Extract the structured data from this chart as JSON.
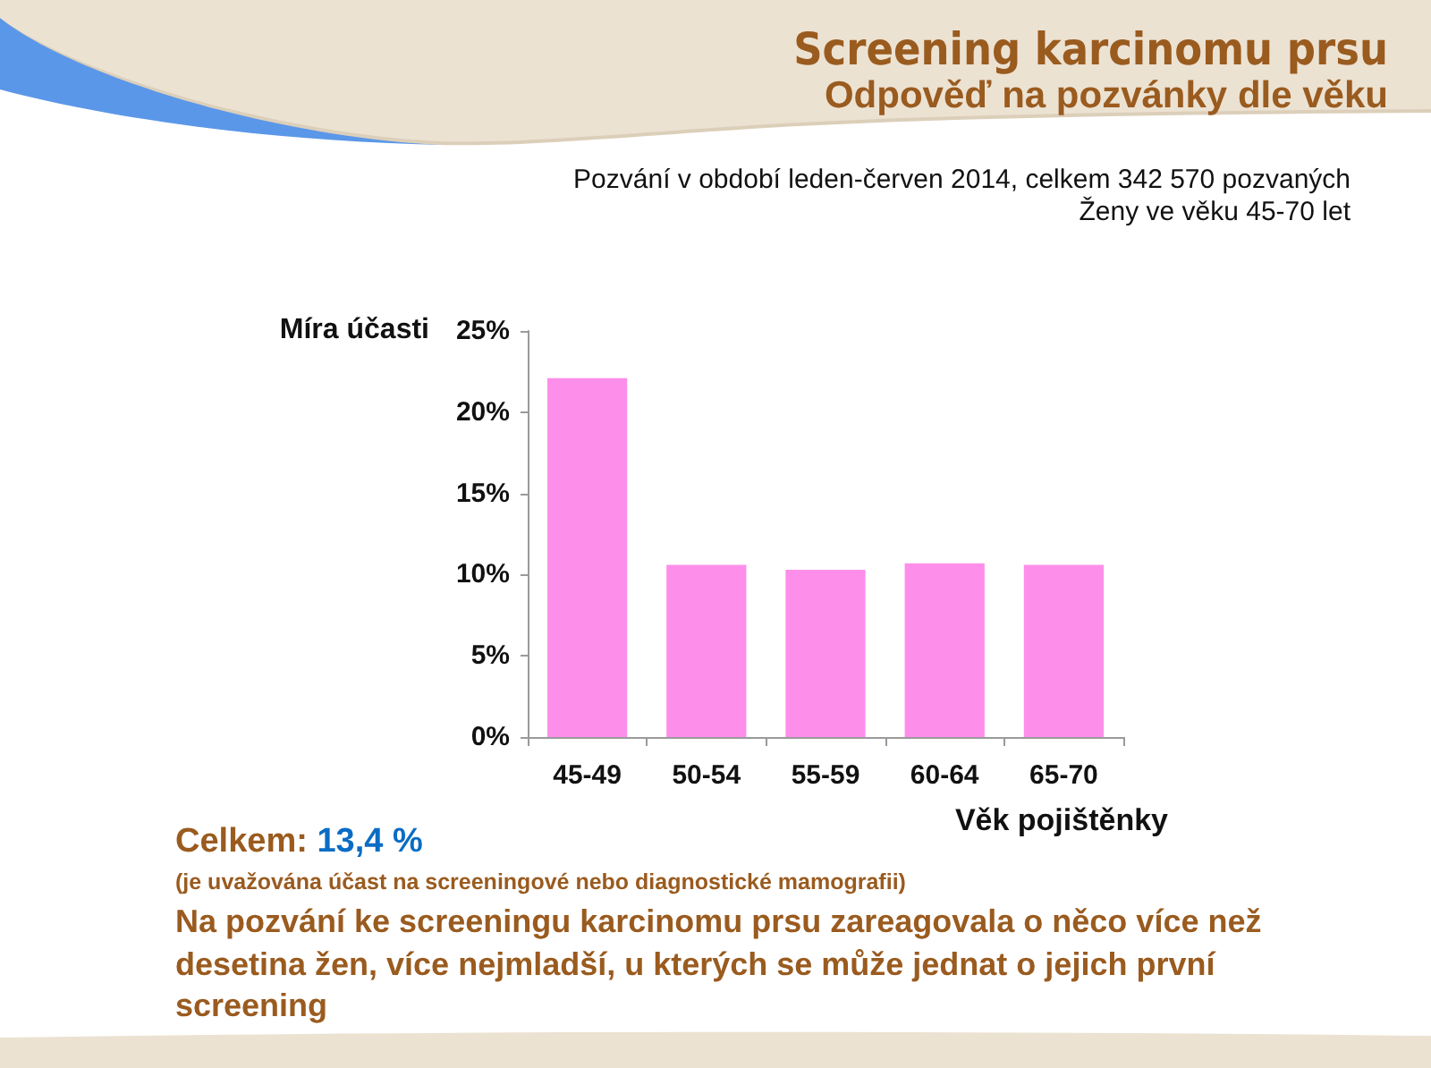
{
  "chart_data": {
    "type": "bar",
    "title": "Screening karcinomu prsu",
    "subtitle": "Odpověď na pozvánky dle věku",
    "xlabel": "Věk pojištěnky",
    "ylabel": "Míra účasti",
    "annotations": [
      "Pozvání v období leden-červen 2014, celkem 342 570 pozvaných",
      "Ženy ve věku 45-70 let",
      "Celkem: 13,4 %",
      "(je uvažována účast na screeningové nebo diagnostické mamografii)",
      "Na pozvání ke screeningu karcinomu prsu zareagovala o něco více než desetina žen, více nejmladší, u kterých se může jednat o jejich první screening"
    ],
    "categories": [
      "45-49",
      "50-54",
      "55-59",
      "60-64",
      "65-70"
    ],
    "values": [
      22.1,
      10.6,
      10.3,
      10.7,
      10.6
    ],
    "color": "#fd8eea",
    "ylim": [
      0,
      25
    ],
    "yticks": [
      {
        "value": 0,
        "label": "0%"
      },
      {
        "value": 5,
        "label": "5%"
      },
      {
        "value": 10,
        "label": "10%"
      },
      {
        "value": 15,
        "label": "15%"
      },
      {
        "value": 20,
        "label": "20%"
      },
      {
        "value": 25,
        "label": "25%"
      }
    ],
    "grid": false
  }
}
